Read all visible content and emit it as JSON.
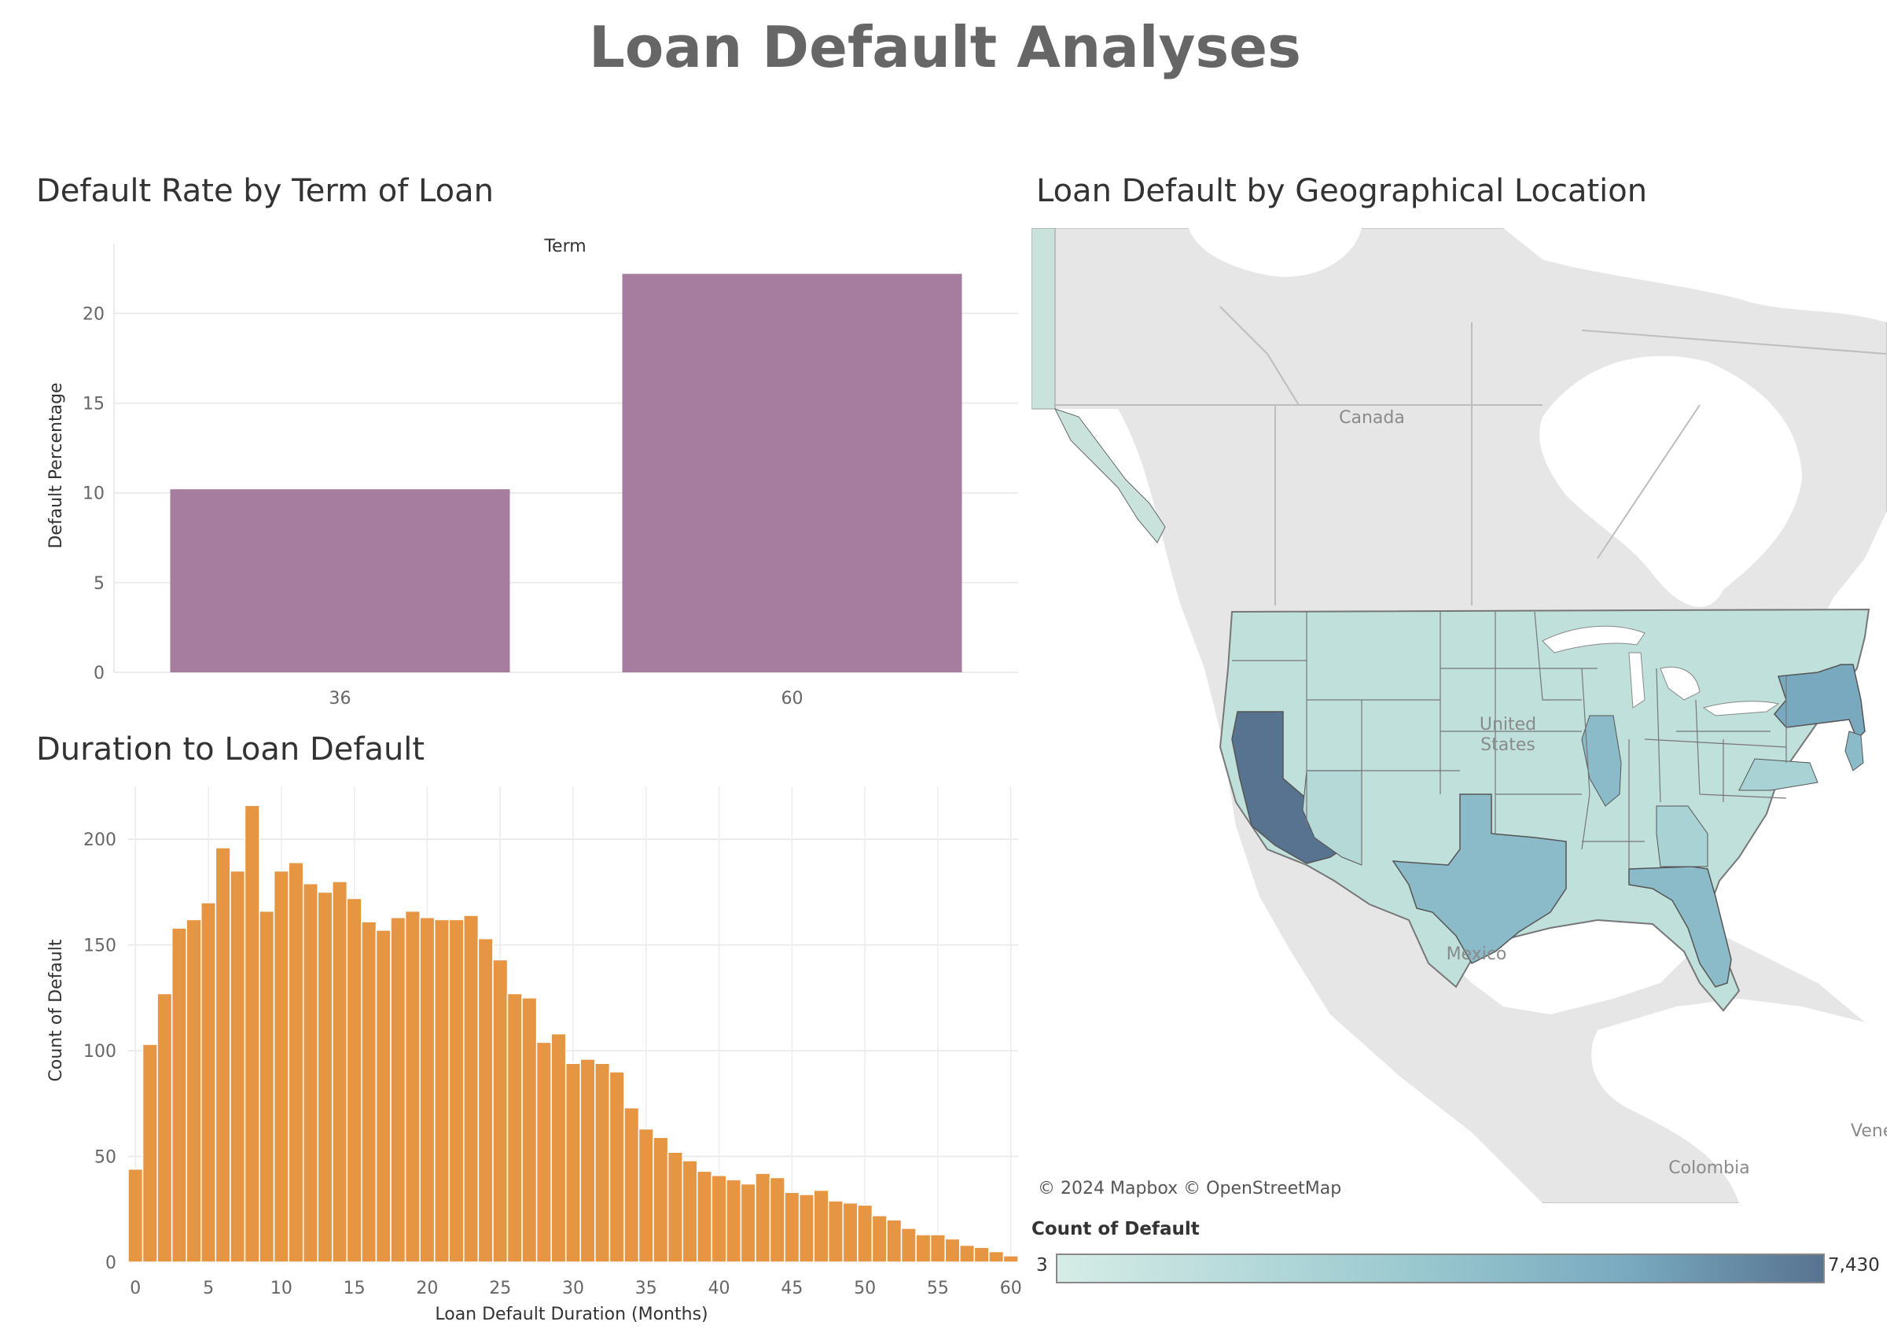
{
  "dashboard_title": "Loan Default Analyses",
  "panels": {
    "term": {
      "title": "Default Rate by Term of Loan"
    },
    "duration": {
      "title": "Duration to Loan Default"
    },
    "map": {
      "title": "Loan Default by Geographical Location",
      "labels": {
        "canada": "Canada",
        "united": "United",
        "states": "States",
        "mexico": "Mexico",
        "colombia": "Colombia",
        "venezuela": "Venezu"
      },
      "attribution": "© 2024 Mapbox  © OpenStreetMap",
      "legend": {
        "title": "Count of Default",
        "min": "3",
        "max": "7,430",
        "min_color": "#d6ece6",
        "max_color": "#58738f"
      },
      "state_colors": {
        "CA": "#58738f",
        "NY": "#78a9bf",
        "TX": "#8bbac8",
        "FL": "#8bbac8",
        "default": "#c0e0db"
      }
    }
  },
  "chart_data": [
    {
      "type": "bar",
      "title": "Default Rate by Term of Loan",
      "header": "Term",
      "categories": [
        "36",
        "60"
      ],
      "values": [
        10.2,
        22.2
      ],
      "ylabel": "Default Percentage",
      "xlabel": "",
      "ylim": [
        0,
        23
      ],
      "yticks": [
        0,
        5,
        10,
        15,
        20
      ],
      "color": "#a67c9f",
      "grid": true
    },
    {
      "type": "bar",
      "title": "Duration to Loan Default",
      "xlabel": "Loan Default Duration (Months)",
      "ylabel": "Count of Default",
      "x": [
        0,
        1,
        2,
        3,
        4,
        5,
        6,
        7,
        8,
        9,
        10,
        11,
        12,
        13,
        14,
        15,
        16,
        17,
        18,
        19,
        20,
        21,
        22,
        23,
        24,
        25,
        26,
        27,
        28,
        29,
        30,
        31,
        32,
        33,
        34,
        35,
        36,
        37,
        38,
        39,
        40,
        41,
        42,
        43,
        44,
        45,
        46,
        47,
        48,
        49,
        50,
        51,
        52,
        53,
        54,
        55,
        56,
        57,
        58,
        59,
        60
      ],
      "values": [
        44,
        103,
        127,
        158,
        162,
        170,
        196,
        185,
        216,
        166,
        185,
        189,
        179,
        175,
        180,
        172,
        161,
        157,
        163,
        166,
        163,
        162,
        162,
        164,
        153,
        143,
        127,
        125,
        104,
        108,
        94,
        96,
        94,
        90,
        73,
        63,
        59,
        52,
        48,
        43,
        41,
        39,
        37,
        42,
        40,
        33,
        32,
        34,
        29,
        28,
        27,
        22,
        20,
        16,
        13,
        13,
        11,
        8,
        7,
        5,
        3
      ],
      "ylim": [
        0,
        225
      ],
      "yticks": [
        0,
        50,
        100,
        150,
        200
      ],
      "xticks": [
        0,
        5,
        10,
        15,
        20,
        25,
        30,
        35,
        40,
        45,
        50,
        55,
        60
      ],
      "color": "#e69542",
      "grid": true
    }
  ]
}
